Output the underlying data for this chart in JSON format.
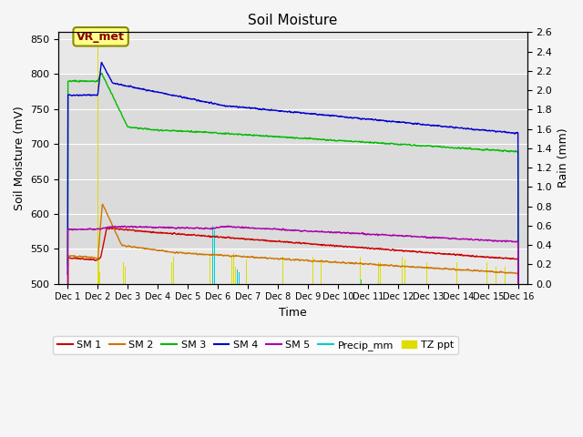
{
  "title": "Soil Moisture",
  "xlabel": "Time",
  "ylabel_left": "Soil Moisture (mV)",
  "ylabel_right": "Rain (mm)",
  "ylim_left": [
    500,
    860
  ],
  "ylim_right": [
    0.0,
    2.6
  ],
  "yticks_left": [
    500,
    550,
    600,
    650,
    700,
    750,
    800,
    850
  ],
  "yticks_right": [
    0.0,
    0.2,
    0.4,
    0.6,
    0.8,
    1.0,
    1.2,
    1.4,
    1.6,
    1.8,
    2.0,
    2.2,
    2.4,
    2.6
  ],
  "annotation_text": "VR_met",
  "bg_color": "#e8e8e8",
  "plot_bg_color": "#d8d8d8",
  "sm1_color": "#cc0000",
  "sm2_color": "#cc7700",
  "sm3_color": "#00bb00",
  "sm4_color": "#0000cc",
  "sm5_color": "#aa00aa",
  "precip_color": "#00cccc",
  "tz_color": "#dddd00",
  "grid_color": "#ffffff",
  "tz_times": [
    1.02,
    1.04,
    1.07,
    1.85,
    1.92,
    3.45,
    3.52,
    4.75,
    4.82,
    5.45,
    5.52,
    5.58,
    5.95,
    7.15,
    8.15,
    8.45,
    9.75,
    10.35,
    10.42,
    11.15,
    11.22,
    11.95,
    12.95,
    13.95,
    14.25,
    14.55
  ],
  "tz_vals": [
    2.55,
    0.28,
    0.12,
    0.22,
    0.18,
    0.22,
    0.28,
    0.28,
    0.22,
    0.28,
    0.32,
    0.18,
    0.25,
    0.28,
    0.28,
    0.25,
    0.28,
    0.22,
    0.22,
    0.28,
    0.25,
    0.22,
    0.22,
    0.22,
    0.18,
    0.18
  ],
  "precip_times": [
    4.82,
    4.88,
    5.65,
    5.7,
    9.78
  ],
  "precip_vals": [
    0.6,
    0.55,
    0.15,
    0.12,
    0.04
  ],
  "tick_labels": [
    "Dec 1",
    "Dec 2",
    "Dec 3",
    "Dec 4",
    "Dec 5",
    "Dec 6",
    "Dec 7",
    "Dec 8",
    "Dec 9",
    "Dec 10",
    "Dec 11",
    "Dec 12",
    "Dec 13",
    "Dec 14",
    "Dec 15",
    "Dec 16"
  ]
}
